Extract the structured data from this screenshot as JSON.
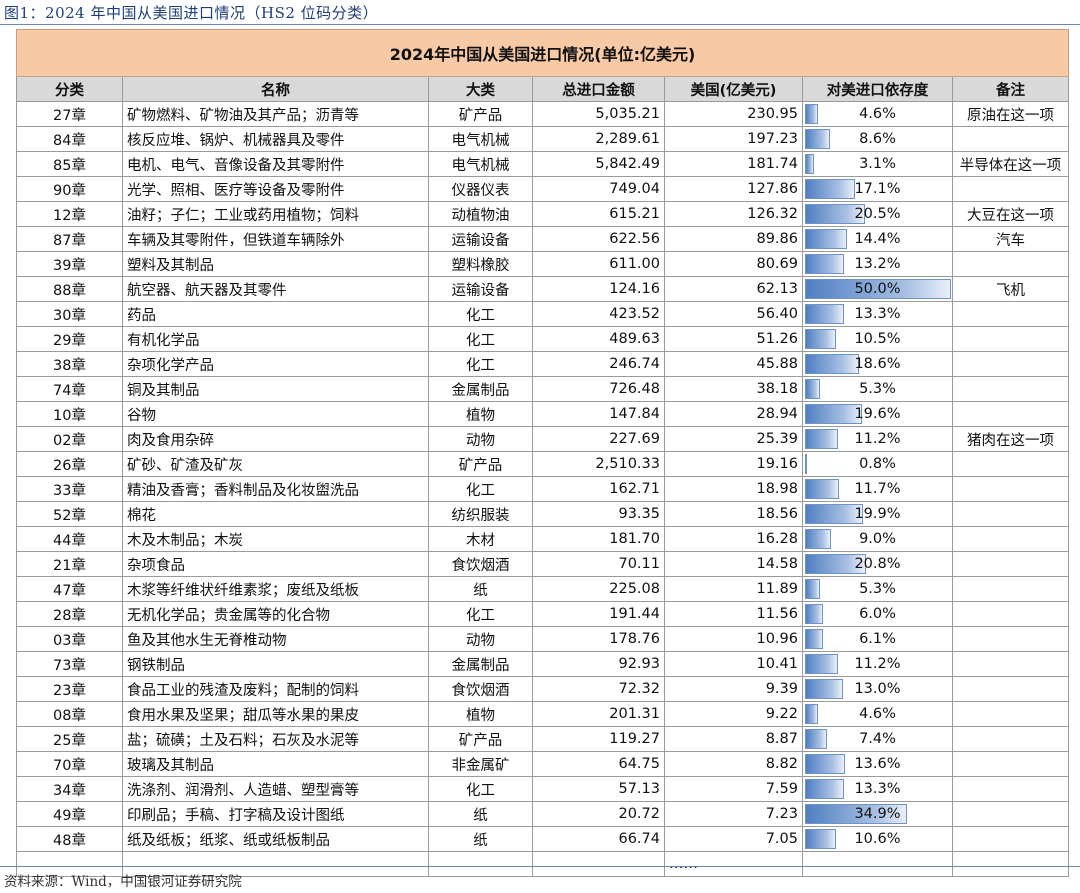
{
  "figure_caption": "图1：2024 年中国从美国进口情况（HS2 位码分类）",
  "table": {
    "title": "2024年中国从美国进口情况(单位:亿美元)",
    "headers": [
      "分类",
      "名称",
      "大类",
      "总进口金额",
      "美国(亿美元)",
      "对美进口依存度",
      "备注"
    ],
    "dependency_scale_max_pct": 50.0,
    "bar_color": "#4f7fc2",
    "title_bg_color": "#f8c9a5",
    "rows": [
      {
        "code": "27章",
        "name": "矿物燃料、矿物油及其产品；沥青等",
        "category": "矿产品",
        "total": "5,035.21",
        "us": "230.95",
        "dep": "4.6%",
        "dep_value": 4.6,
        "note": "原油在这一项"
      },
      {
        "code": "84章",
        "name": "核反应堆、锅炉、机械器具及零件",
        "category": "电气机械",
        "total": "2,289.61",
        "us": "197.23",
        "dep": "8.6%",
        "dep_value": 8.6,
        "note": ""
      },
      {
        "code": "85章",
        "name": "电机、电气、音像设备及其零附件",
        "category": "电气机械",
        "total": "5,842.49",
        "us": "181.74",
        "dep": "3.1%",
        "dep_value": 3.1,
        "note": "半导体在这一项"
      },
      {
        "code": "90章",
        "name": "光学、照相、医疗等设备及零附件",
        "category": "仪器仪表",
        "total": "749.04",
        "us": "127.86",
        "dep": "17.1%",
        "dep_value": 17.1,
        "note": ""
      },
      {
        "code": "12章",
        "name": "油籽；子仁；工业或药用植物；饲料",
        "category": "动植物油",
        "total": "615.21",
        "us": "126.32",
        "dep": "20.5%",
        "dep_value": 20.5,
        "note": "大豆在这一项"
      },
      {
        "code": "87章",
        "name": "车辆及其零附件，但铁道车辆除外",
        "category": "运输设备",
        "total": "622.56",
        "us": "89.86",
        "dep": "14.4%",
        "dep_value": 14.4,
        "note": "汽车"
      },
      {
        "code": "39章",
        "name": "塑料及其制品",
        "category": "塑料橡胶",
        "total": "611.00",
        "us": "80.69",
        "dep": "13.2%",
        "dep_value": 13.2,
        "note": ""
      },
      {
        "code": "88章",
        "name": "航空器、航天器及其零件",
        "category": "运输设备",
        "total": "124.16",
        "us": "62.13",
        "dep": "50.0%",
        "dep_value": 50.0,
        "note": "飞机"
      },
      {
        "code": "30章",
        "name": "药品",
        "category": "化工",
        "total": "423.52",
        "us": "56.40",
        "dep": "13.3%",
        "dep_value": 13.3,
        "note": ""
      },
      {
        "code": "29章",
        "name": "有机化学品",
        "category": "化工",
        "total": "489.63",
        "us": "51.26",
        "dep": "10.5%",
        "dep_value": 10.5,
        "note": ""
      },
      {
        "code": "38章",
        "name": "杂项化学产品",
        "category": "化工",
        "total": "246.74",
        "us": "45.88",
        "dep": "18.6%",
        "dep_value": 18.6,
        "note": ""
      },
      {
        "code": "74章",
        "name": "铜及其制品",
        "category": "金属制品",
        "total": "726.48",
        "us": "38.18",
        "dep": "5.3%",
        "dep_value": 5.3,
        "note": ""
      },
      {
        "code": "10章",
        "name": "谷物",
        "category": "植物",
        "total": "147.84",
        "us": "28.94",
        "dep": "19.6%",
        "dep_value": 19.6,
        "note": ""
      },
      {
        "code": "02章",
        "name": "肉及食用杂碎",
        "category": "动物",
        "total": "227.69",
        "us": "25.39",
        "dep": "11.2%",
        "dep_value": 11.2,
        "note": "猪肉在这一项"
      },
      {
        "code": "26章",
        "name": "矿砂、矿渣及矿灰",
        "category": "矿产品",
        "total": "2,510.33",
        "us": "19.16",
        "dep": "0.8%",
        "dep_value": 0.8,
        "note": ""
      },
      {
        "code": "33章",
        "name": "精油及香膏；香料制品及化妆盥洗品",
        "category": "化工",
        "total": "162.71",
        "us": "18.98",
        "dep": "11.7%",
        "dep_value": 11.7,
        "note": ""
      },
      {
        "code": "52章",
        "name": "棉花",
        "category": "纺织服装",
        "total": "93.35",
        "us": "18.56",
        "dep": "19.9%",
        "dep_value": 19.9,
        "note": ""
      },
      {
        "code": "44章",
        "name": "木及木制品；木炭",
        "category": "木材",
        "total": "181.70",
        "us": "16.28",
        "dep": "9.0%",
        "dep_value": 9.0,
        "note": ""
      },
      {
        "code": "21章",
        "name": "杂项食品",
        "category": "食饮烟酒",
        "total": "70.11",
        "us": "14.58",
        "dep": "20.8%",
        "dep_value": 20.8,
        "note": ""
      },
      {
        "code": "47章",
        "name": "木浆等纤维状纤维素浆；废纸及纸板",
        "category": "纸",
        "total": "225.08",
        "us": "11.89",
        "dep": "5.3%",
        "dep_value": 5.3,
        "note": ""
      },
      {
        "code": "28章",
        "name": "无机化学品；贵金属等的化合物",
        "category": "化工",
        "total": "191.44",
        "us": "11.56",
        "dep": "6.0%",
        "dep_value": 6.0,
        "note": ""
      },
      {
        "code": "03章",
        "name": "鱼及其他水生无脊椎动物",
        "category": "动物",
        "total": "178.76",
        "us": "10.96",
        "dep": "6.1%",
        "dep_value": 6.1,
        "note": ""
      },
      {
        "code": "73章",
        "name": "钢铁制品",
        "category": "金属制品",
        "total": "92.93",
        "us": "10.41",
        "dep": "11.2%",
        "dep_value": 11.2,
        "note": ""
      },
      {
        "code": "23章",
        "name": "食品工业的残渣及废料；配制的饲料",
        "category": "食饮烟酒",
        "total": "72.32",
        "us": "9.39",
        "dep": "13.0%",
        "dep_value": 13.0,
        "note": ""
      },
      {
        "code": "08章",
        "name": "食用水果及坚果；甜瓜等水果的果皮",
        "category": "植物",
        "total": "201.31",
        "us": "9.22",
        "dep": "4.6%",
        "dep_value": 4.6,
        "note": ""
      },
      {
        "code": "25章",
        "name": "盐；硫磺；土及石料；石灰及水泥等",
        "category": "矿产品",
        "total": "119.27",
        "us": "8.87",
        "dep": "7.4%",
        "dep_value": 7.4,
        "note": ""
      },
      {
        "code": "70章",
        "name": "玻璃及其制品",
        "category": "非金属矿",
        "total": "64.75",
        "us": "8.82",
        "dep": "13.6%",
        "dep_value": 13.6,
        "note": ""
      },
      {
        "code": "34章",
        "name": "洗涤剂、润滑剂、人造蜡、塑型膏等",
        "category": "化工",
        "total": "57.13",
        "us": "7.59",
        "dep": "13.3%",
        "dep_value": 13.3,
        "note": ""
      },
      {
        "code": "49章",
        "name": "印刷品；手稿、打字稿及设计图纸",
        "category": "纸",
        "total": "20.72",
        "us": "7.23",
        "dep": "34.9%",
        "dep_value": 34.9,
        "note": ""
      },
      {
        "code": "48章",
        "name": "纸及纸板；纸浆、纸或纸板制品",
        "category": "纸",
        "total": "66.74",
        "us": "7.05",
        "dep": "10.6%",
        "dep_value": 10.6,
        "note": ""
      }
    ],
    "ellipsis": "……"
  },
  "source_note": "资料来源：Wind，中国银河证券研究院"
}
